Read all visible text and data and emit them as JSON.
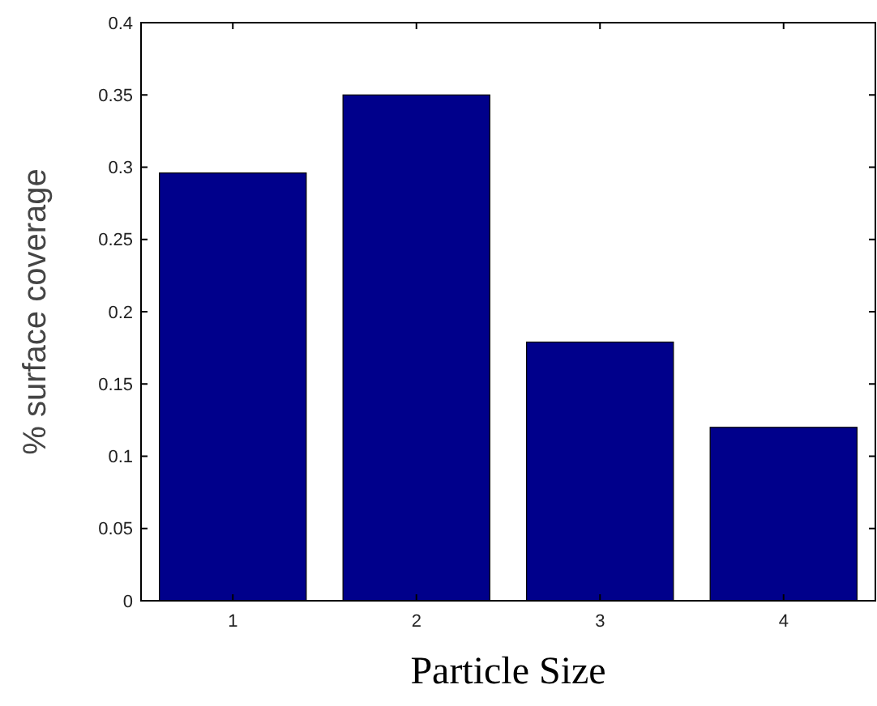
{
  "chart_data": {
    "type": "bar",
    "xlabel": "Particle Size",
    "ylabel": "% surface coverage",
    "categories": [
      "1",
      "2",
      "3",
      "4"
    ],
    "values": [
      0.296,
      0.35,
      0.179,
      0.12
    ],
    "color": "#00008b",
    "ylim": [
      0,
      0.4
    ],
    "yticks": [
      0,
      0.05,
      0.1,
      0.15,
      0.2,
      0.25,
      0.3,
      0.35,
      0.4
    ],
    "grid": false
  }
}
